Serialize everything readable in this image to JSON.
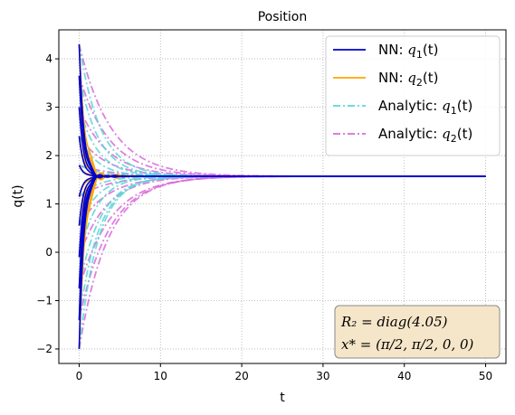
{
  "chart_data": {
    "type": "line",
    "title": "Position",
    "xlabel": "t",
    "ylabel": "q(t)",
    "xlim": [
      -2.5,
      52.5
    ],
    "ylim": [
      -2.3,
      4.6
    ],
    "xticks": [
      0,
      10,
      20,
      30,
      40,
      50
    ],
    "yticks": [
      -2,
      -1,
      0,
      1,
      2,
      3,
      4
    ],
    "xtick_labels": [
      "0",
      "10",
      "20",
      "30",
      "40",
      "50"
    ],
    "ytick_labels": [
      "−2",
      "−1",
      "0",
      "1",
      "2",
      "3",
      "4"
    ],
    "grid": true,
    "legend_position": "top-right",
    "equilibrium": 1.5708,
    "t_end": 50,
    "initial_conditions": [
      4.3,
      3.65,
      3.0,
      2.4,
      1.8,
      1.15,
      0.55,
      -0.1,
      -0.75,
      -1.4,
      -2.0
    ],
    "series": [
      {
        "name": "NN: q₁(t)",
        "label_main": "NN: ",
        "label_sym": "q",
        "label_sub": "1",
        "label_arg": "(t)",
        "color": "#0000cd",
        "style": "solid",
        "decay_rate": 1.6,
        "osc_amp": 0.12,
        "osc_freq": 3.2
      },
      {
        "name": "NN: q₂(t)",
        "label_main": "NN: ",
        "label_sym": "q",
        "label_sub": "2",
        "label_arg": "(t)",
        "color": "#ffa500",
        "style": "solid",
        "decay_rate": 1.2,
        "osc_amp": 0.25,
        "osc_freq": 3.0
      },
      {
        "name": "Analytic: q₁(t)",
        "label_main": "Analytic: ",
        "label_sym": "q",
        "label_sub": "1",
        "label_arg": "(t)",
        "color": "#5cd6d6",
        "style": "dashdot",
        "decay_rate": 0.45
      },
      {
        "name": "Analytic: q₂(t)",
        "label_main": "Analytic: ",
        "label_sym": "q",
        "label_sub": "2",
        "label_arg": "(t)",
        "color": "#d96ad9",
        "style": "dashdot",
        "decay_rate": 0.3
      }
    ],
    "annotation": {
      "line1": "R₂ = diag(4.05)",
      "line2": "x* = (π/2, π/2, 0, 0)",
      "background": "#f6e6c9",
      "border": "#8a8a8a"
    }
  }
}
